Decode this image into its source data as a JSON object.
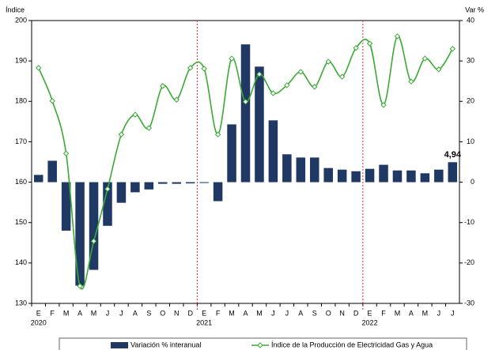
{
  "chart_data": {
    "type": "combo",
    "ylabel": "Índice",
    "y2label": "Var %",
    "categories": [
      "E",
      "F",
      "M",
      "A",
      "M",
      "J",
      "J",
      "A",
      "S",
      "O",
      "N",
      "D",
      "E",
      "F",
      "M",
      "A",
      "M",
      "J",
      "J",
      "A",
      "S",
      "O",
      "N",
      "D",
      "E",
      "F",
      "M",
      "A",
      "M",
      "J",
      "J"
    ],
    "years": [
      "2020",
      null,
      null,
      null,
      null,
      null,
      null,
      null,
      null,
      null,
      null,
      null,
      "2021",
      null,
      null,
      null,
      null,
      null,
      null,
      null,
      null,
      null,
      null,
      null,
      "2022",
      null,
      null,
      null,
      null,
      null,
      null
    ],
    "ylim": [
      130,
      200
    ],
    "yticks": [
      130,
      140,
      150,
      160,
      170,
      180,
      190,
      200
    ],
    "y2lim": [
      -30,
      40
    ],
    "y2ticks": [
      -30,
      -20,
      -10,
      0,
      10,
      20,
      30,
      40
    ],
    "series": [
      {
        "name": "Variación % interanual",
        "type": "bar",
        "axis": "y2",
        "color": "#1f3864",
        "values": [
          1.8,
          5.3,
          -12,
          -25.6,
          -21.7,
          -10.8,
          -5.1,
          -2.5,
          -1.8,
          -0.4,
          -0.4,
          -0.3,
          -0.2,
          -4.7,
          14.3,
          34.1,
          28.6,
          15.3,
          6.9,
          6.1,
          6.1,
          3.5,
          3.1,
          2.7,
          3.3,
          4.3,
          2.9,
          2.9,
          2.2,
          3.1,
          4.94
        ],
        "value_labels": [
          null,
          null,
          null,
          null,
          null,
          null,
          null,
          null,
          null,
          null,
          null,
          null,
          null,
          null,
          null,
          null,
          null,
          null,
          null,
          null,
          null,
          null,
          null,
          null,
          null,
          null,
          null,
          null,
          null,
          null,
          "4,94"
        ]
      },
      {
        "name": "Índice de la Producción de Electricidad Gas y Agua",
        "type": "line",
        "color": "#3aaa35",
        "values": [
          188.3,
          180.1,
          167.1,
          134.3,
          145.4,
          158.3,
          171.8,
          176.7,
          173.4,
          183.8,
          180.4,
          188.3,
          188.1,
          171.8,
          190.6,
          179.9,
          186.7,
          182.0,
          184.0,
          187.3,
          183.6,
          189.8,
          186.1,
          193.2,
          194.3,
          179.1,
          196.1,
          184.9,
          190.6,
          187.9,
          193.0
        ]
      }
    ]
  }
}
